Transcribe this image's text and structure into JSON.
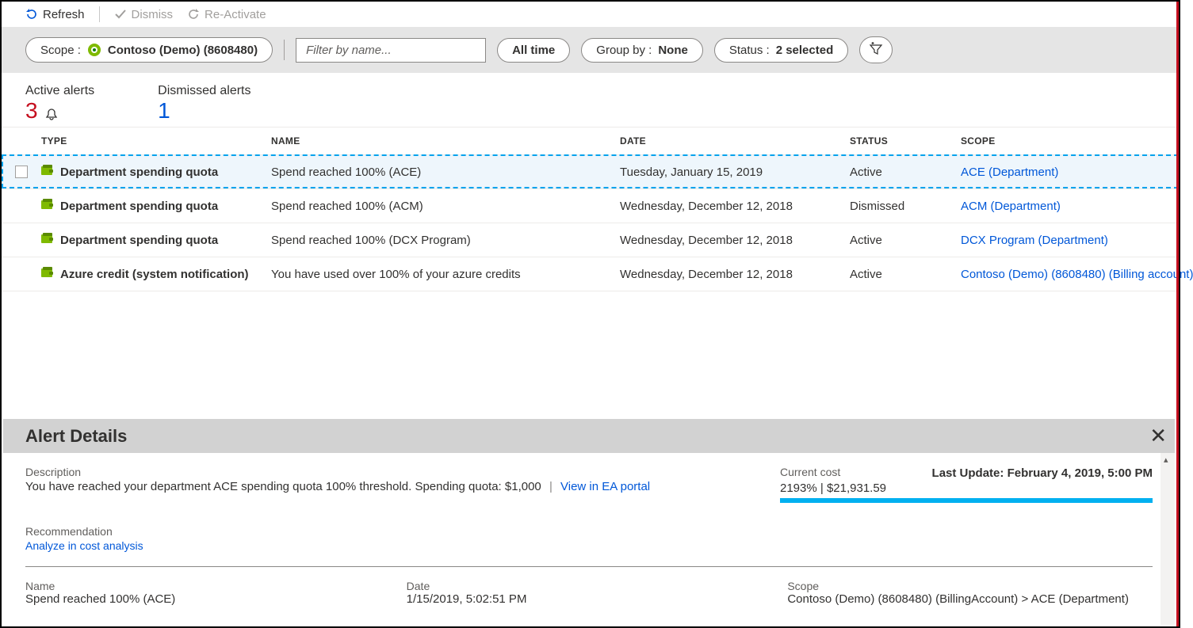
{
  "toolbar": {
    "refresh": "Refresh",
    "dismiss": "Dismiss",
    "reactivate": "Re-Activate"
  },
  "filters": {
    "scope_prefix": "Scope : ",
    "scope_value": "Contoso (Demo) (8608480)",
    "search_placeholder": "Filter by name...",
    "time": "All time",
    "groupby_prefix": "Group by : ",
    "groupby_value": "None",
    "status_prefix": "Status : ",
    "status_value": "2 selected"
  },
  "counters": {
    "active_label": "Active alerts",
    "active_count": "3",
    "dismissed_label": "Dismissed alerts",
    "dismissed_count": "1"
  },
  "columns": {
    "type": "TYPE",
    "name": "NAME",
    "date": "DATE",
    "status": "STATUS",
    "scope": "SCOPE"
  },
  "rows": [
    {
      "type": "Department spending quota",
      "name": "Spend reached 100% (ACE)",
      "date": "Tuesday, January 15, 2019",
      "status": "Active",
      "scope": "ACE (Department)",
      "selected": true
    },
    {
      "type": "Department spending quota",
      "name": "Spend reached 100% (ACM)",
      "date": "Wednesday, December 12, 2018",
      "status": "Dismissed",
      "scope": "ACM (Department)",
      "selected": false
    },
    {
      "type": "Department spending quota",
      "name": "Spend reached 100% (DCX Program)",
      "date": "Wednesday, December 12, 2018",
      "status": "Active",
      "scope": "DCX Program (Department)",
      "selected": false
    },
    {
      "type": "Azure credit (system notification)",
      "name": "You have used over 100% of your azure credits",
      "date": "Wednesday, December 12, 2018",
      "status": "Active",
      "scope": "Contoso (Demo) (8608480) (Billing account)",
      "selected": false
    }
  ],
  "details": {
    "title": "Alert Details",
    "desc_label": "Description",
    "desc_text": "You have reached your department ACE spending quota 100% threshold. Spending quota: $1,000",
    "desc_link": "View in EA portal",
    "cost_label": "Current cost",
    "cost_value": "2193% | $21,931.59",
    "last_update_label": "Last Update: ",
    "last_update_value": "February 4, 2019, 5:00 PM",
    "reco_label": "Recommendation",
    "reco_link": "Analyze in cost analysis",
    "name_label": "Name",
    "name_value": "Spend reached 100% (ACE)",
    "date_label": "Date",
    "date_value": "1/15/2019, 5:02:51 PM",
    "scope_label": "Scope",
    "scope_value": "Contoso (Demo) (8608480) (BillingAccount) > ACE (Department)"
  },
  "colors": {
    "link": "#0057d8",
    "red": "#c50f1f",
    "accent": "#00b0f0"
  }
}
